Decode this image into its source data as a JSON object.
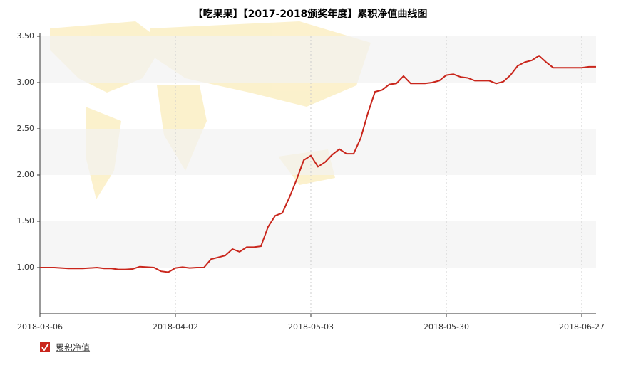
{
  "chart_data": {
    "type": "line",
    "title": "【吃果果】【2017-2018颁奖年度】累积净值曲线图",
    "categories": [
      "2018-03-06",
      null,
      null,
      null,
      null,
      null,
      null,
      null,
      null,
      null,
      null,
      null,
      null,
      null,
      null,
      null,
      null,
      null,
      null,
      "2018-04-02",
      null,
      null,
      null,
      null,
      null,
      null,
      null,
      null,
      null,
      null,
      null,
      null,
      null,
      null,
      null,
      null,
      null,
      null,
      "2018-05-03",
      null,
      null,
      null,
      null,
      null,
      null,
      null,
      null,
      null,
      null,
      null,
      null,
      null,
      null,
      null,
      null,
      null,
      null,
      "2018-05-30",
      null,
      null,
      null,
      null,
      null,
      null,
      null,
      null,
      null,
      null,
      null,
      null,
      null,
      null,
      null,
      null,
      null,
      null,
      "2018-06-27",
      null,
      null
    ],
    "series": [
      {
        "name": "累积净值",
        "color": "#c9261c",
        "values": [
          1.0,
          1.0,
          1.0,
          0.995,
          0.99,
          0.99,
          0.99,
          0.995,
          1.0,
          0.99,
          0.99,
          0.98,
          0.98,
          0.985,
          1.01,
          1.005,
          1.0,
          0.96,
          0.95,
          0.995,
          1.005,
          0.995,
          1.0,
          1.0,
          1.09,
          1.11,
          1.13,
          1.2,
          1.17,
          1.22,
          1.22,
          1.23,
          1.44,
          1.56,
          1.59,
          1.76,
          1.95,
          2.16,
          2.21,
          2.09,
          2.14,
          2.22,
          2.28,
          2.23,
          2.23,
          2.4,
          2.67,
          2.9,
          2.92,
          2.98,
          2.99,
          3.07,
          2.99,
          2.99,
          2.99,
          3.0,
          3.02,
          3.08,
          3.09,
          3.06,
          3.05,
          3.02,
          3.02,
          3.02,
          2.99,
          3.01,
          3.08,
          3.18,
          3.22,
          3.24,
          3.29,
          3.22,
          3.16,
          3.16,
          3.16,
          3.16,
          3.16,
          3.17,
          3.17
        ]
      }
    ],
    "ylim": [
      0.5,
      3.5
    ],
    "yticks": [
      {
        "value": 1,
        "label": "1.00"
      },
      {
        "value": 1.5,
        "label": "1.50"
      },
      {
        "value": 2,
        "label": "2.00"
      },
      {
        "value": 2.5,
        "label": "2.50"
      },
      {
        "value": 3,
        "label": "3.00"
      },
      {
        "value": 3.5,
        "label": "3.50"
      }
    ],
    "grid": true
  }
}
